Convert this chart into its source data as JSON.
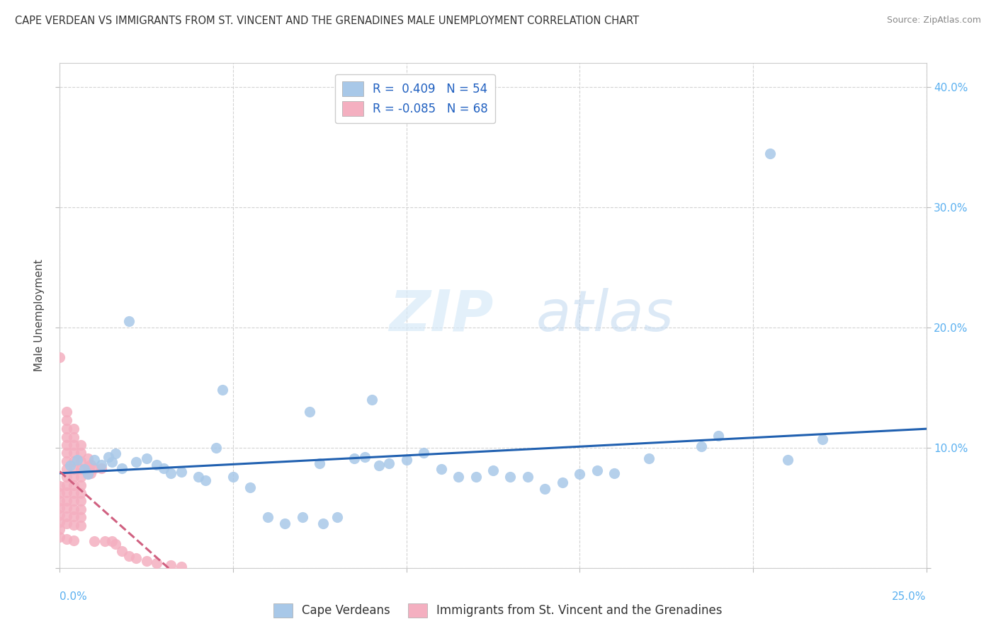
{
  "title": "CAPE VERDEAN VS IMMIGRANTS FROM ST. VINCENT AND THE GRENADINES MALE UNEMPLOYMENT CORRELATION CHART",
  "source": "Source: ZipAtlas.com",
  "ylabel": "Male Unemployment",
  "xlim": [
    0.0,
    0.25
  ],
  "ylim": [
    0.0,
    0.42
  ],
  "xticks": [
    0.0,
    0.05,
    0.1,
    0.15,
    0.2,
    0.25
  ],
  "yticks": [
    0.0,
    0.1,
    0.2,
    0.3,
    0.4
  ],
  "x_left_label": "0.0%",
  "x_right_label": "25.0%",
  "ytick_labels": [
    "",
    "10.0%",
    "20.0%",
    "30.0%",
    "40.0%"
  ],
  "blue_R": 0.409,
  "blue_N": 54,
  "pink_R": -0.085,
  "pink_N": 68,
  "blue_color": "#a8c8e8",
  "pink_color": "#f4afc0",
  "blue_line_color": "#2060b0",
  "pink_line_color": "#d06080",
  "legend_label_blue": "Cape Verdeans",
  "legend_label_pink": "Immigrants from St. Vincent and the Grenadines",
  "blue_scatter": [
    [
      0.003,
      0.085
    ],
    [
      0.005,
      0.09
    ],
    [
      0.007,
      0.082
    ],
    [
      0.008,
      0.078
    ],
    [
      0.01,
      0.09
    ],
    [
      0.012,
      0.086
    ],
    [
      0.014,
      0.092
    ],
    [
      0.015,
      0.088
    ],
    [
      0.016,
      0.095
    ],
    [
      0.018,
      0.083
    ],
    [
      0.02,
      0.205
    ],
    [
      0.022,
      0.088
    ],
    [
      0.025,
      0.091
    ],
    [
      0.028,
      0.086
    ],
    [
      0.03,
      0.083
    ],
    [
      0.032,
      0.079
    ],
    [
      0.035,
      0.08
    ],
    [
      0.04,
      0.076
    ],
    [
      0.042,
      0.073
    ],
    [
      0.045,
      0.1
    ],
    [
      0.047,
      0.148
    ],
    [
      0.05,
      0.076
    ],
    [
      0.055,
      0.067
    ],
    [
      0.06,
      0.042
    ],
    [
      0.065,
      0.037
    ],
    [
      0.07,
      0.042
    ],
    [
      0.072,
      0.13
    ],
    [
      0.075,
      0.087
    ],
    [
      0.076,
      0.037
    ],
    [
      0.08,
      0.042
    ],
    [
      0.085,
      0.091
    ],
    [
      0.088,
      0.092
    ],
    [
      0.09,
      0.14
    ],
    [
      0.092,
      0.085
    ],
    [
      0.095,
      0.087
    ],
    [
      0.1,
      0.09
    ],
    [
      0.105,
      0.096
    ],
    [
      0.11,
      0.082
    ],
    [
      0.115,
      0.076
    ],
    [
      0.12,
      0.076
    ],
    [
      0.125,
      0.081
    ],
    [
      0.13,
      0.076
    ],
    [
      0.135,
      0.076
    ],
    [
      0.14,
      0.066
    ],
    [
      0.145,
      0.071
    ],
    [
      0.15,
      0.078
    ],
    [
      0.155,
      0.081
    ],
    [
      0.16,
      0.079
    ],
    [
      0.17,
      0.091
    ],
    [
      0.185,
      0.101
    ],
    [
      0.19,
      0.11
    ],
    [
      0.205,
      0.345
    ],
    [
      0.21,
      0.09
    ],
    [
      0.22,
      0.107
    ]
  ],
  "pink_scatter": [
    [
      0.0,
      0.175
    ],
    [
      0.0,
      0.068
    ],
    [
      0.0,
      0.062
    ],
    [
      0.0,
      0.056
    ],
    [
      0.0,
      0.05
    ],
    [
      0.0,
      0.044
    ],
    [
      0.0,
      0.038
    ],
    [
      0.0,
      0.032
    ],
    [
      0.0,
      0.026
    ],
    [
      0.002,
      0.13
    ],
    [
      0.002,
      0.123
    ],
    [
      0.002,
      0.116
    ],
    [
      0.002,
      0.109
    ],
    [
      0.002,
      0.102
    ],
    [
      0.002,
      0.096
    ],
    [
      0.002,
      0.089
    ],
    [
      0.002,
      0.082
    ],
    [
      0.002,
      0.076
    ],
    [
      0.002,
      0.069
    ],
    [
      0.002,
      0.063
    ],
    [
      0.002,
      0.056
    ],
    [
      0.002,
      0.05
    ],
    [
      0.002,
      0.043
    ],
    [
      0.002,
      0.037
    ],
    [
      0.002,
      0.024
    ],
    [
      0.004,
      0.116
    ],
    [
      0.004,
      0.109
    ],
    [
      0.004,
      0.102
    ],
    [
      0.004,
      0.096
    ],
    [
      0.004,
      0.089
    ],
    [
      0.004,
      0.082
    ],
    [
      0.004,
      0.076
    ],
    [
      0.004,
      0.069
    ],
    [
      0.004,
      0.062
    ],
    [
      0.004,
      0.056
    ],
    [
      0.004,
      0.049
    ],
    [
      0.004,
      0.043
    ],
    [
      0.004,
      0.036
    ],
    [
      0.004,
      0.023
    ],
    [
      0.006,
      0.102
    ],
    [
      0.006,
      0.096
    ],
    [
      0.006,
      0.089
    ],
    [
      0.006,
      0.082
    ],
    [
      0.006,
      0.076
    ],
    [
      0.006,
      0.069
    ],
    [
      0.006,
      0.062
    ],
    [
      0.006,
      0.056
    ],
    [
      0.006,
      0.049
    ],
    [
      0.006,
      0.042
    ],
    [
      0.006,
      0.035
    ],
    [
      0.008,
      0.091
    ],
    [
      0.008,
      0.084
    ],
    [
      0.008,
      0.078
    ],
    [
      0.009,
      0.086
    ],
    [
      0.009,
      0.079
    ],
    [
      0.01,
      0.083
    ],
    [
      0.01,
      0.022
    ],
    [
      0.012,
      0.083
    ],
    [
      0.013,
      0.022
    ],
    [
      0.015,
      0.022
    ],
    [
      0.016,
      0.02
    ],
    [
      0.018,
      0.014
    ],
    [
      0.02,
      0.01
    ],
    [
      0.022,
      0.008
    ],
    [
      0.025,
      0.006
    ],
    [
      0.028,
      0.004
    ],
    [
      0.032,
      0.002
    ],
    [
      0.035,
      0.001
    ]
  ],
  "watermark_zip": "ZIP",
  "watermark_atlas": "atlas",
  "background_color": "#ffffff",
  "grid_color": "#c8c8c8"
}
